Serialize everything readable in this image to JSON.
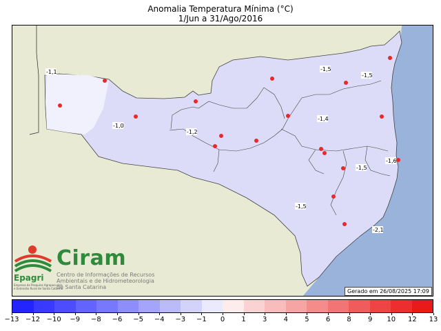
{
  "title": {
    "line1": "Anomalia Temperatura Mínima (°C)",
    "line2": "1/Jun a 31/Ago/2016"
  },
  "colors": {
    "land_outside": "#e9ead3",
    "ocean": "#99b3da",
    "state_base": "#dcdcf8",
    "light_area": "#eeeefc",
    "station": "#e8282a",
    "border": "#404040"
  },
  "isolines": [
    {
      "label": "-1,1"
    },
    {
      "label": "-1,0"
    },
    {
      "label": "-1,2"
    },
    {
      "label": "-1,5"
    },
    {
      "label": "-1,5"
    },
    {
      "label": "-1,4"
    },
    {
      "label": "-1,6"
    },
    {
      "label": "-1,5"
    },
    {
      "label": "-1,5"
    },
    {
      "label": "-2,1"
    }
  ],
  "logo": {
    "brand": "Ciram",
    "subtitle_line1": "Centro de Informações de Recursos",
    "subtitle_line2": "Ambientais e de Hidrometeorologia",
    "subtitle_line3": "de Santa Catarina",
    "epagri": "Epagri",
    "epagri_small1": "Empresa de Pesquisa Agropecuária",
    "epagri_small2": "e Extensão Rural de Santa Catarina"
  },
  "generated": "Gerado em 26/08/2025 17:09",
  "colorbar": {
    "labels": [
      "−13",
      "−12",
      "−10",
      "−9",
      "−8",
      "−6",
      "−5",
      "−4",
      "−3",
      "−1",
      "0",
      "1",
      "3",
      "4",
      "5",
      "6",
      "8",
      "9",
      "10",
      "12",
      "13"
    ],
    "colors": [
      "#2424ff",
      "#3939ff",
      "#4d4dfe",
      "#6363fd",
      "#7878fc",
      "#8e8efb",
      "#a4a4fa",
      "#bbbbfa",
      "#d2d2fa",
      "#eaeafc",
      "#fdecec",
      "#fad2d2",
      "#f8bcbc",
      "#f6a4a4",
      "#f48c8c",
      "#f27474",
      "#f05c5c",
      "#ee4444",
      "#ec2e2e",
      "#e81a1a"
    ]
  }
}
